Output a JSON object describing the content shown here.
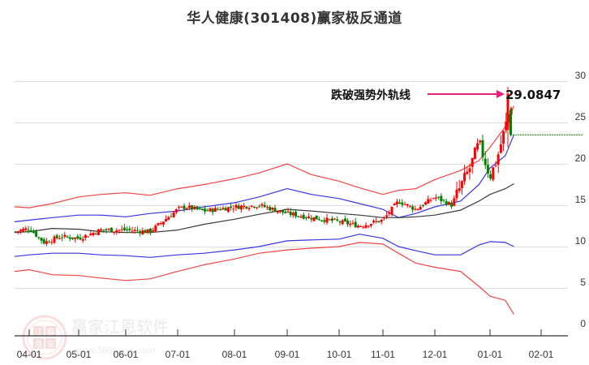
{
  "title": "华人健康(301408)赢家极反通道",
  "annotation": {
    "label": "跌破强势外轨线",
    "value": "29.0847",
    "arrow_color": "#e8207a"
  },
  "watermark": {
    "text": "赢家江恩软件",
    "url": "www.360gann.com",
    "seal_chars": [
      "江",
      "赢",
      "恩",
      "家"
    ]
  },
  "colors": {
    "up": "#ff0000",
    "down": "#008000",
    "outer_band": "#ff0000",
    "inner_band": "#0000ff",
    "mid_line": "#000000",
    "grid": "#dddddd",
    "reference_line": "#008000"
  },
  "chart_data": {
    "type": "candlestick",
    "title": "华人健康(301408)赢家极反通道",
    "xlabel": "",
    "ylabel": "",
    "ylim": [
      0,
      30
    ],
    "yticks": [
      0,
      5,
      10,
      15,
      20,
      25,
      30
    ],
    "xticks": [
      "04-01",
      "05-01",
      "06-01",
      "07-01",
      "08-01",
      "09-01",
      "10-01",
      "11-01",
      "12-01",
      "01-01",
      "02-01"
    ],
    "grid": "horizontal",
    "legend": "none",
    "annotations": [
      {
        "text": "跌破强势外轨线",
        "value": 29.0847,
        "type": "arrow"
      }
    ],
    "reference_line": {
      "value": 23.5,
      "style": "dashed",
      "color": "green",
      "from": "last-bar",
      "to": "right-edge"
    },
    "series": [
      {
        "name": "outer-upper",
        "color": "red",
        "x": [
          "03-20",
          "04-01",
          "04-15",
          "05-01",
          "05-15",
          "06-01",
          "06-15",
          "07-01",
          "07-15",
          "08-01",
          "08-15",
          "09-01",
          "09-15",
          "10-01",
          "10-15",
          "11-01",
          "11-10",
          "11-20",
          "12-01",
          "12-15",
          "12-25",
          "01-01",
          "01-10",
          "01-15"
        ],
        "values": [
          14.8,
          14.7,
          15.2,
          16.0,
          16.3,
          16.5,
          16.2,
          17.0,
          17.5,
          18.2,
          18.9,
          20.0,
          18.7,
          17.9,
          17.1,
          16.3,
          16.8,
          17.0,
          18.1,
          19.2,
          20.4,
          22.0,
          24.5,
          27.0
        ]
      },
      {
        "name": "inner-upper",
        "color": "blue",
        "x": [
          "03-20",
          "04-01",
          "04-15",
          "05-01",
          "05-15",
          "06-01",
          "06-15",
          "07-01",
          "07-15",
          "08-01",
          "08-15",
          "09-01",
          "09-15",
          "10-01",
          "10-15",
          "11-01",
          "11-10",
          "11-20",
          "12-01",
          "12-15",
          "12-25",
          "01-01",
          "01-10",
          "01-15"
        ],
        "values": [
          13.0,
          13.2,
          13.5,
          13.8,
          13.8,
          13.6,
          14.0,
          14.3,
          14.8,
          15.3,
          16.0,
          17.0,
          16.3,
          15.8,
          15.2,
          14.5,
          13.5,
          14.0,
          14.8,
          15.5,
          17.5,
          19.5,
          21.0,
          23.5
        ]
      },
      {
        "name": "mid-line",
        "color": "black",
        "x": [
          "03-20",
          "04-01",
          "04-15",
          "05-01",
          "05-15",
          "06-01",
          "06-15",
          "07-01",
          "07-15",
          "08-01",
          "08-15",
          "09-01",
          "09-15",
          "10-01",
          "10-15",
          "11-01",
          "11-10",
          "11-20",
          "12-01",
          "12-15",
          "12-25",
          "01-01",
          "01-10",
          "01-15"
        ],
        "values": [
          11.7,
          11.8,
          12.2,
          12.1,
          11.8,
          11.7,
          11.7,
          12.0,
          12.7,
          13.3,
          13.9,
          14.5,
          14.3,
          14.0,
          13.8,
          13.5,
          13.5,
          13.6,
          13.8,
          14.4,
          15.5,
          16.3,
          17.0,
          17.6
        ]
      },
      {
        "name": "inner-lower",
        "color": "blue",
        "x": [
          "03-20",
          "04-01",
          "04-15",
          "05-01",
          "05-15",
          "06-01",
          "06-15",
          "07-01",
          "07-15",
          "08-01",
          "08-15",
          "09-01",
          "09-15",
          "10-01",
          "10-15",
          "11-01",
          "11-10",
          "11-20",
          "12-01",
          "12-15",
          "12-25",
          "01-01",
          "01-10",
          "01-15"
        ],
        "values": [
          8.8,
          9.0,
          9.2,
          9.2,
          9.0,
          8.9,
          8.7,
          9.0,
          9.2,
          9.6,
          10.0,
          10.7,
          10.8,
          10.9,
          11.5,
          11.0,
          10.0,
          9.5,
          9.0,
          9.0,
          10.2,
          10.6,
          10.5,
          10.0
        ]
      },
      {
        "name": "outer-lower",
        "color": "red",
        "x": [
          "03-20",
          "04-01",
          "04-15",
          "05-01",
          "05-15",
          "06-01",
          "06-15",
          "07-01",
          "07-15",
          "08-01",
          "08-15",
          "09-01",
          "09-15",
          "10-01",
          "10-15",
          "11-01",
          "11-10",
          "11-20",
          "12-01",
          "12-15",
          "12-25",
          "01-01",
          "01-10",
          "01-15"
        ],
        "values": [
          7.0,
          7.2,
          6.6,
          6.5,
          6.2,
          5.9,
          6.1,
          7.0,
          7.8,
          8.5,
          9.2,
          9.6,
          9.8,
          10.0,
          10.5,
          10.3,
          9.2,
          8.0,
          7.5,
          7.0,
          5.2,
          4.0,
          3.5,
          1.8
        ]
      },
      {
        "name": "price-close",
        "color": "red/green candles",
        "x": [
          "03-20",
          "04-01",
          "04-10",
          "04-20",
          "05-01",
          "05-15",
          "06-01",
          "06-15",
          "07-01",
          "07-05",
          "07-15",
          "08-01",
          "08-15",
          "09-01",
          "09-15",
          "10-01",
          "10-15",
          "11-01",
          "11-10",
          "11-20",
          "12-01",
          "12-10",
          "12-20",
          "12-25",
          "01-01",
          "01-05",
          "01-10",
          "01-14",
          "01-15"
        ],
        "values": [
          11.8,
          12.2,
          10.5,
          11.2,
          11.0,
          12.0,
          12.0,
          11.8,
          14.5,
          14.8,
          14.3,
          14.8,
          15.0,
          14.0,
          13.5,
          13.0,
          12.5,
          13.2,
          15.5,
          14.5,
          16.0,
          15.0,
          19.5,
          22.5,
          18.5,
          20.5,
          24.5,
          27.5,
          23.5
        ]
      }
    ]
  }
}
